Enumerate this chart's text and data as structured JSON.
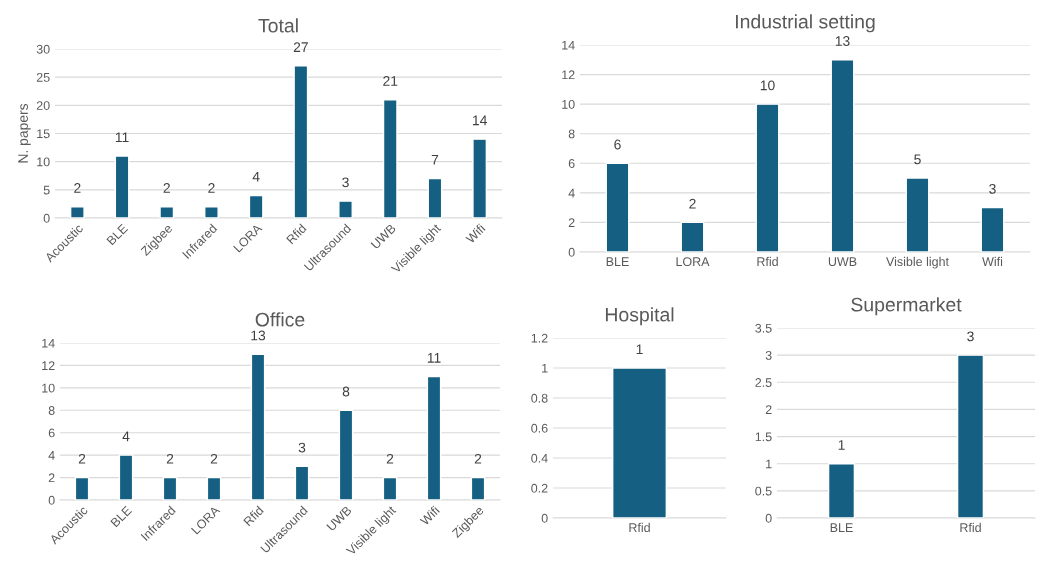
{
  "chart_data": [
    {
      "type": "bar",
      "title": "Total",
      "ylabel": "N. papers",
      "categories": [
        "Acoustic",
        "BLE",
        "Zigbee",
        "Infrared",
        "LORA",
        "Rfid",
        "Ultrasound",
        "UWB",
        "Visible light",
        "Wifi"
      ],
      "values": [
        2,
        11,
        2,
        2,
        4,
        27,
        3,
        21,
        7,
        14
      ],
      "color": "#156082",
      "ylim": [
        0,
        30
      ],
      "yticks": [
        0,
        5,
        10,
        15,
        20,
        25,
        30
      ],
      "grid": "y",
      "data_labels": true
    },
    {
      "type": "bar",
      "title": "Industrial setting",
      "categories": [
        "BLE",
        "LORA",
        "Rfid",
        "UWB",
        "Visible light",
        "Wifi"
      ],
      "values": [
        6,
        2,
        10,
        13,
        5,
        3
      ],
      "color": "#156082",
      "ylim": [
        0,
        14
      ],
      "yticks": [
        0,
        2,
        4,
        6,
        8,
        10,
        12,
        14
      ],
      "grid": "y",
      "data_labels": true
    },
    {
      "type": "bar",
      "title": "Office",
      "categories": [
        "Acoustic",
        "BLE",
        "Infrared",
        "LORA",
        "Rfid",
        "Ultrasound",
        "UWB",
        "Visible light",
        "Wifi",
        "Zigbee"
      ],
      "values": [
        2,
        4,
        2,
        2,
        13,
        3,
        8,
        2,
        11,
        2
      ],
      "color": "#156082",
      "ylim": [
        0,
        14
      ],
      "yticks": [
        0,
        2,
        4,
        6,
        8,
        10,
        12,
        14
      ],
      "grid": "y",
      "data_labels": true
    },
    {
      "type": "bar",
      "title": "Hospital",
      "categories": [
        "Rfid"
      ],
      "values": [
        1
      ],
      "color": "#156082",
      "ylim": [
        0,
        1.2
      ],
      "yticks": [
        0,
        0.2,
        0.4,
        0.6,
        0.8,
        1,
        1.2
      ],
      "grid": "y",
      "data_labels": true
    },
    {
      "type": "bar",
      "title": "Supermarket",
      "categories": [
        "BLE",
        "Rfid"
      ],
      "values": [
        1,
        3
      ],
      "color": "#156082",
      "ylim": [
        0,
        3.5
      ],
      "yticks": [
        0,
        0.5,
        1,
        1.5,
        2,
        2.5,
        3,
        3.5
      ],
      "grid": "y",
      "data_labels": true
    }
  ]
}
